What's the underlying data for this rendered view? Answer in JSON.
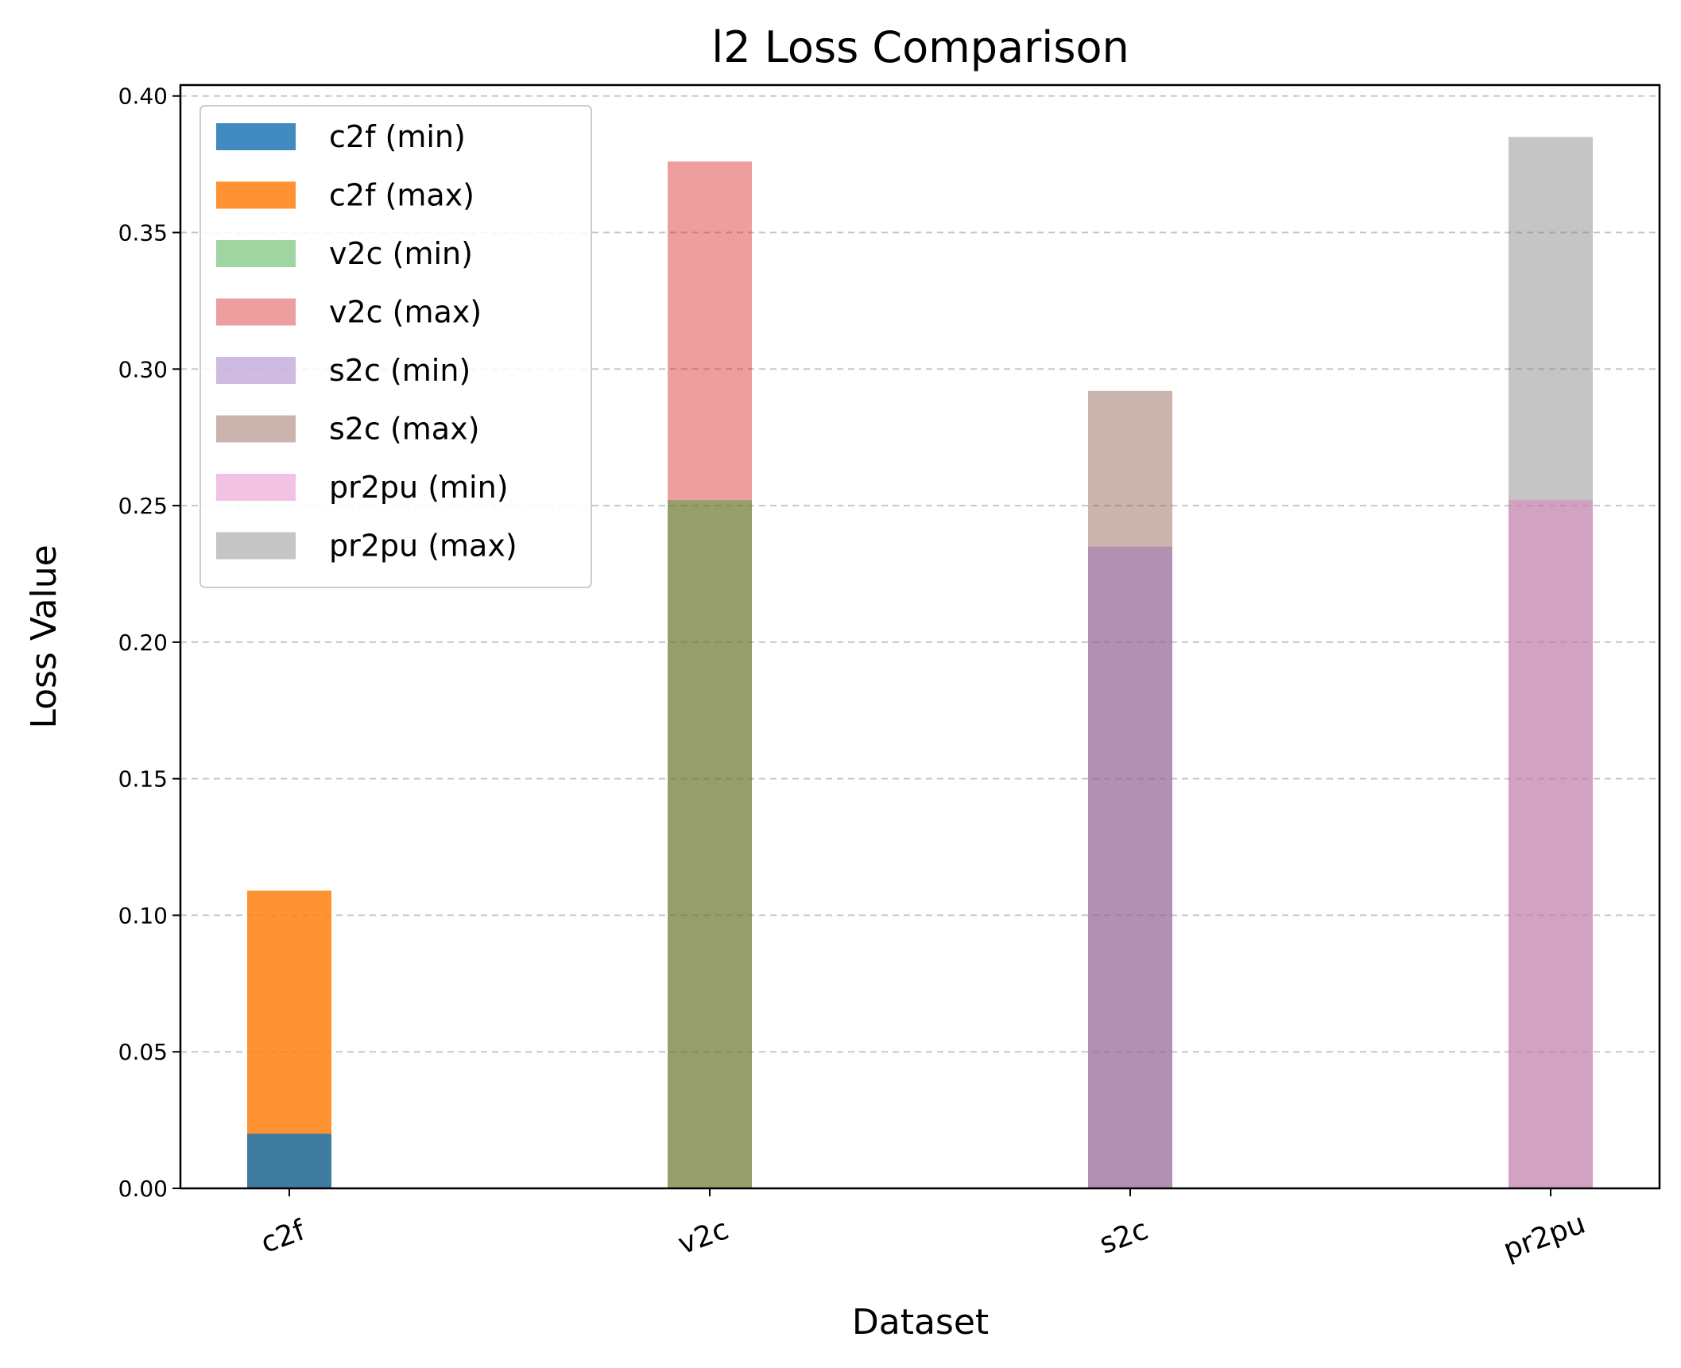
{
  "chart_data": {
    "type": "bar",
    "stacked": true,
    "title": "l2 Loss Comparison",
    "xlabel": "Dataset",
    "ylabel": "Loss Value",
    "ylim": [
      0,
      0.404
    ],
    "yticks": [
      "0.00",
      "0.05",
      "0.10",
      "0.15",
      "0.20",
      "0.25",
      "0.30",
      "0.35",
      "0.40"
    ],
    "categories": [
      "c2f",
      "v2c",
      "s2c",
      "pr2pu"
    ],
    "grid": "y dashed",
    "legend_position": "top-left",
    "series": [
      {
        "name": "c2f (min)",
        "category": "c2f",
        "segment": "min",
        "value": 0.02,
        "color": "#1f77b4"
      },
      {
        "name": "c2f (max)",
        "category": "c2f",
        "segment": "max",
        "value": 0.109,
        "color": "#ff7f0e"
      },
      {
        "name": "v2c (min)",
        "category": "v2c",
        "segment": "min",
        "value": 0.252,
        "color": "#2ca02c"
      },
      {
        "name": "v2c (max)",
        "category": "v2c",
        "segment": "max",
        "value": 0.376,
        "color": "#d62728"
      },
      {
        "name": "s2c (min)",
        "category": "s2c",
        "segment": "min",
        "value": 0.235,
        "color": "#9467bd"
      },
      {
        "name": "s2c (max)",
        "category": "s2c",
        "segment": "max",
        "value": 0.292,
        "color": "#8c564b"
      },
      {
        "name": "pr2pu (min)",
        "category": "pr2pu",
        "segment": "min",
        "value": 0.252,
        "color": "#e377c2"
      },
      {
        "name": "pr2pu (max)",
        "category": "pr2pu",
        "segment": "max",
        "value": 0.385,
        "color": "#7f7f7f"
      }
    ]
  }
}
